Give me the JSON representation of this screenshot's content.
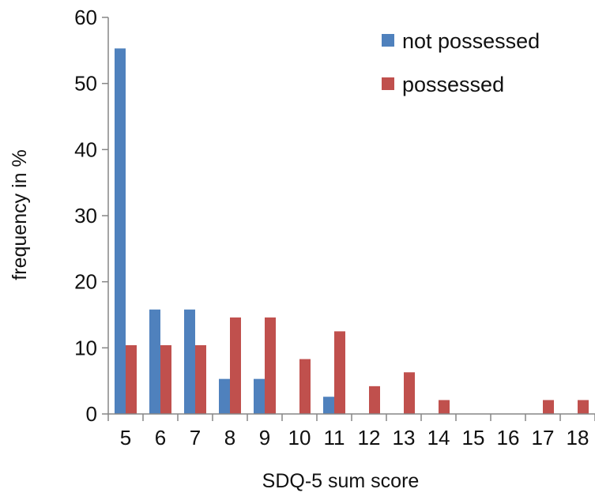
{
  "chart_data": {
    "type": "bar",
    "title": "",
    "xlabel": "SDQ-5 sum score",
    "ylabel": "frequency in %",
    "ylim": [
      0,
      60
    ],
    "yticks": [
      0,
      10,
      20,
      30,
      40,
      50,
      60
    ],
    "grid": false,
    "legend_position": "top-right",
    "categories": [
      "5",
      "6",
      "7",
      "8",
      "9",
      "10",
      "11",
      "12",
      "13",
      "14",
      "15",
      "16",
      "17",
      "18"
    ],
    "series": [
      {
        "name": "not possessed",
        "color": "#4f81bd",
        "values": [
          55.3,
          15.8,
          15.8,
          5.3,
          5.3,
          0,
          2.6,
          0,
          0,
          0,
          0,
          0,
          0,
          0
        ]
      },
      {
        "name": "possessed",
        "color": "#c0504d",
        "values": [
          10.4,
          10.4,
          10.4,
          14.6,
          14.6,
          8.3,
          12.5,
          4.2,
          6.3,
          2.1,
          0,
          0,
          2.1,
          2.1
        ]
      }
    ]
  }
}
